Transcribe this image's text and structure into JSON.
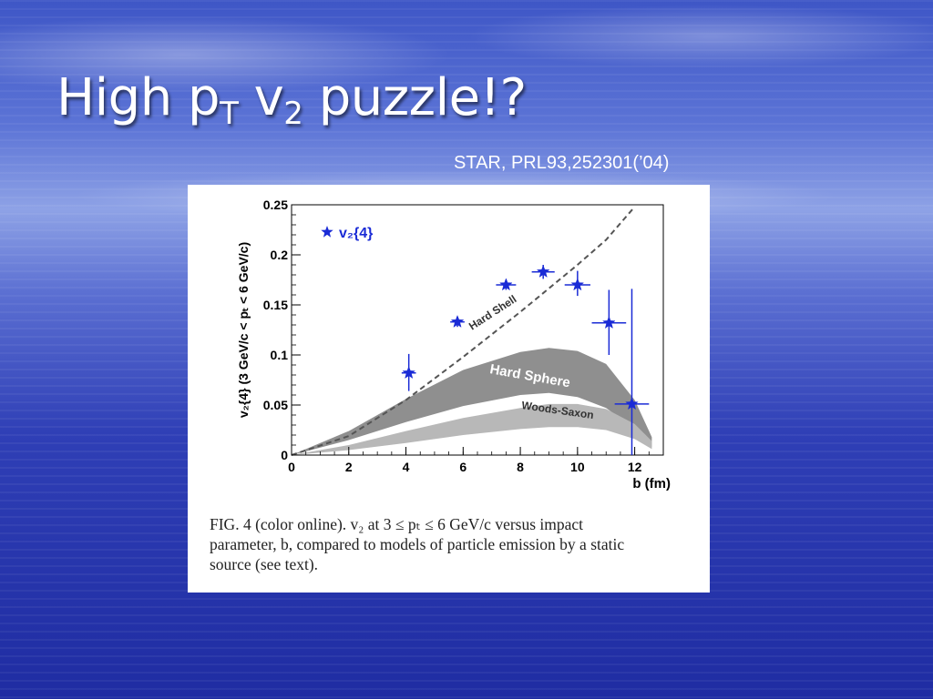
{
  "slide": {
    "title_main": "High p",
    "title_sub1": "T",
    "title_mid": " v",
    "title_sub2": "2",
    "title_end": " puzzle!?",
    "citation": "STAR, PRL93,252301(’04)"
  },
  "figure": {
    "caption_line1": "FIG. 4 (color online).    v₂ at 3 ≤ pₜ ≤ 6 GeV/c versus impact",
    "caption_line2": "parameter, b, compared to models of particle emission by a static",
    "caption_line3": "source (see text)."
  },
  "chart_data": {
    "type": "scatter",
    "title": "",
    "xlabel": "b (fm)",
    "ylabel": "v₂{4} (3 GeV/c < pₜ < 6 GeV/c)",
    "xlim": [
      0,
      13
    ],
    "ylim": [
      0,
      0.25
    ],
    "x_ticks": [
      "0",
      "2",
      "4",
      "6",
      "8",
      "10",
      "12"
    ],
    "y_ticks": [
      "0",
      "0.05",
      "0.1",
      "0.15",
      "0.2",
      "0.25"
    ],
    "legend": {
      "label": "v₂{4}",
      "position": "top-left"
    },
    "colors": {
      "data": "#1a2bd6",
      "hard_sphere": "#8f8f8f",
      "woods_saxon": "#b8b8b8",
      "hard_shell": "#555555"
    },
    "series": [
      {
        "name": "v₂{4}",
        "marker": "star",
        "points": [
          {
            "x": 4.1,
            "y": 0.082,
            "yerr_low": 0.018,
            "yerr_high": 0.019,
            "xerr": 0.25
          },
          {
            "x": 5.8,
            "y": 0.133,
            "yerr_low": 0.005,
            "yerr_high": 0.005,
            "xerr": 0.25
          },
          {
            "x": 7.5,
            "y": 0.17,
            "yerr_low": 0.005,
            "yerr_high": 0.005,
            "xerr": 0.35
          },
          {
            "x": 8.8,
            "y": 0.183,
            "yerr_low": 0.007,
            "yerr_high": 0.007,
            "xerr": 0.4
          },
          {
            "x": 10.0,
            "y": 0.17,
            "yerr_low": 0.011,
            "yerr_high": 0.014,
            "xerr": 0.45
          },
          {
            "x": 11.1,
            "y": 0.132,
            "yerr_low": 0.032,
            "yerr_high": 0.033,
            "xerr": 0.6
          },
          {
            "x": 11.9,
            "y": 0.051,
            "yerr_low": 0.051,
            "yerr_high": 0.115,
            "xerr": 0.6
          }
        ]
      }
    ],
    "model_curves": [
      {
        "label": "Hard Shell",
        "style": "dashed",
        "x": [
          0,
          2,
          4,
          6,
          8,
          10,
          11,
          12.0
        ],
        "y": [
          0,
          0.019,
          0.055,
          0.098,
          0.143,
          0.19,
          0.215,
          0.248
        ]
      }
    ],
    "model_bands": [
      {
        "label": "Hard Sphere",
        "x": [
          0,
          2,
          4,
          6,
          8,
          9,
          10,
          11,
          12,
          12.6
        ],
        "y_upper": [
          0,
          0.024,
          0.056,
          0.085,
          0.103,
          0.107,
          0.104,
          0.091,
          0.055,
          0.018
        ],
        "y_lower": [
          0,
          0.015,
          0.033,
          0.049,
          0.06,
          0.062,
          0.058,
          0.047,
          0.026,
          0.008
        ]
      },
      {
        "label": "Woods-Saxon",
        "x": [
          0,
          2,
          4,
          6,
          8,
          9,
          10,
          11,
          12,
          12.6
        ],
        "y_upper": [
          0,
          0.01,
          0.024,
          0.037,
          0.047,
          0.051,
          0.051,
          0.046,
          0.031,
          0.014
        ],
        "y_lower": [
          0,
          0.005,
          0.012,
          0.02,
          0.026,
          0.028,
          0.028,
          0.025,
          0.016,
          0.006
        ]
      }
    ]
  }
}
